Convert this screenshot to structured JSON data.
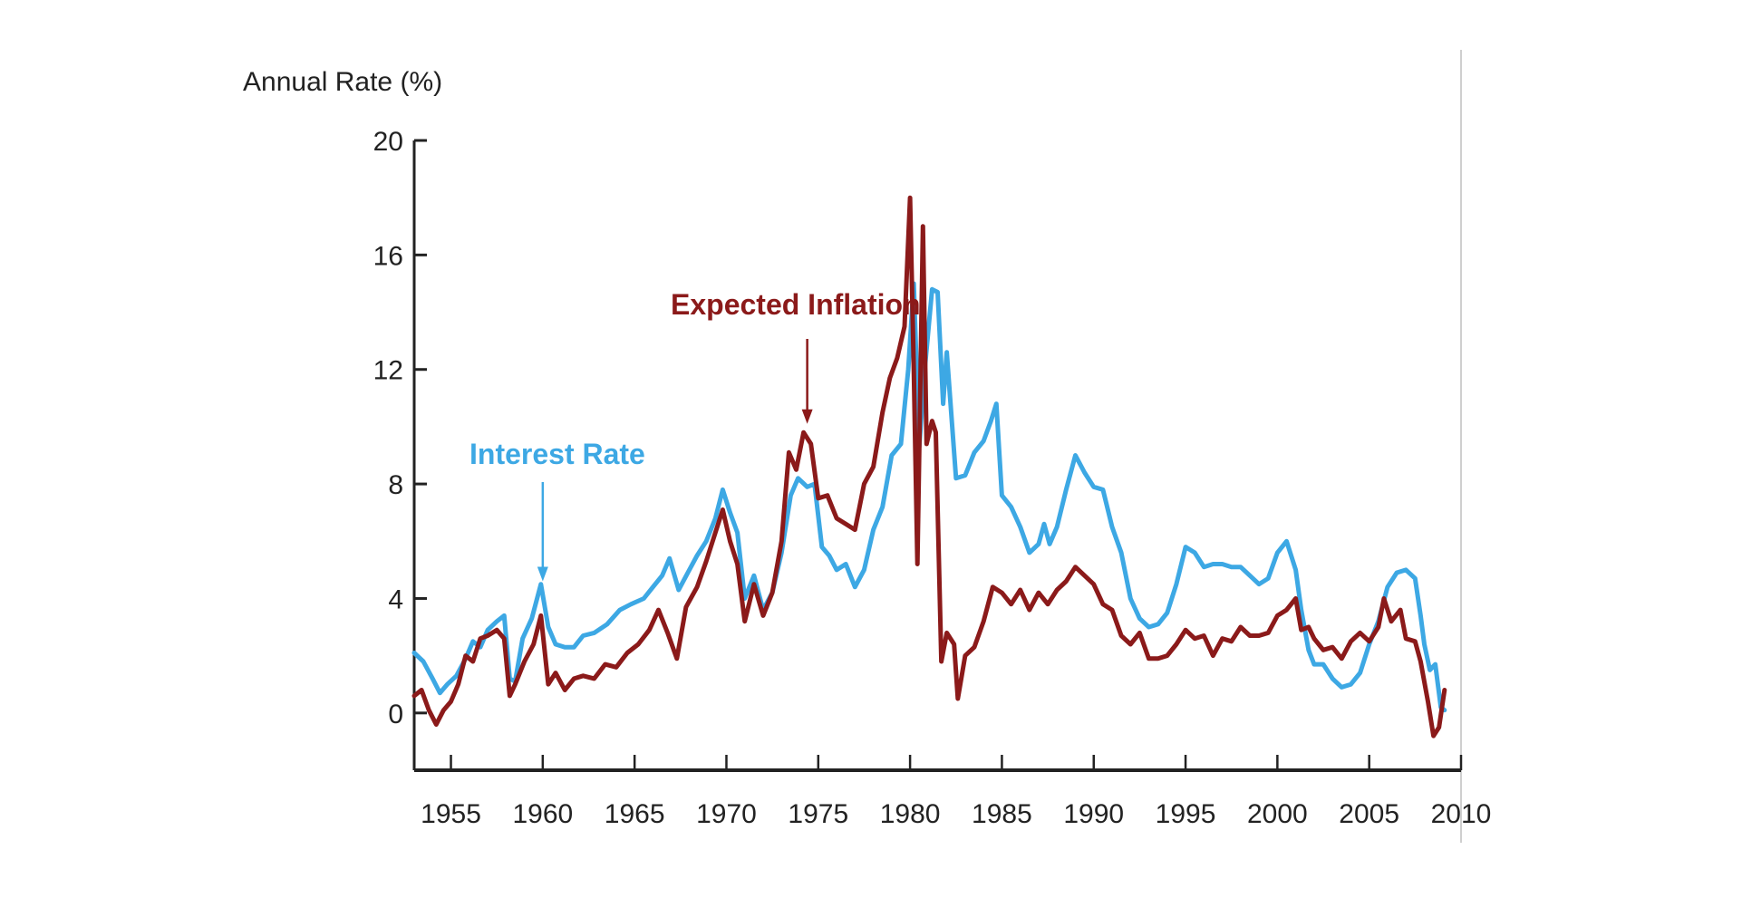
{
  "chart_data": {
    "type": "line",
    "title": "",
    "ylabel": "Annual Rate (%)",
    "xlabel": "",
    "xlim": [
      1953,
      2010
    ],
    "ylim": [
      -2,
      20
    ],
    "x_ticks": [
      1955,
      1960,
      1965,
      1970,
      1975,
      1980,
      1985,
      1990,
      1995,
      2000,
      2005,
      2010
    ],
    "y_ticks": [
      0,
      4,
      8,
      12,
      16,
      20
    ],
    "x_tick_labels": [
      "1955",
      "1960",
      "1965",
      "1970",
      "1975",
      "1980",
      "1985",
      "1990",
      "1995",
      "2000",
      "2005",
      "2010"
    ],
    "y_tick_labels": [
      "0",
      "4",
      "8",
      "12",
      "16",
      "20"
    ],
    "grid": false,
    "legend": "none",
    "annotations": [
      {
        "text": "Interest Rate",
        "points_to": [
          1960,
          4.6
        ],
        "color": "#3da8e4"
      },
      {
        "text": "Expected Inflation",
        "points_to": [
          1974.4,
          10.1
        ],
        "color": "#8b1a1a"
      }
    ],
    "series": [
      {
        "name": "Interest Rate",
        "color": "#3da8e4",
        "points": [
          [
            1953.0,
            2.1
          ],
          [
            1953.5,
            1.8
          ],
          [
            1954.0,
            1.2
          ],
          [
            1954.4,
            0.7
          ],
          [
            1954.8,
            1.0
          ],
          [
            1955.3,
            1.3
          ],
          [
            1955.8,
            1.9
          ],
          [
            1956.2,
            2.5
          ],
          [
            1956.6,
            2.3
          ],
          [
            1957.0,
            2.9
          ],
          [
            1957.5,
            3.2
          ],
          [
            1957.9,
            3.4
          ],
          [
            1958.2,
            1.2
          ],
          [
            1958.5,
            1.1
          ],
          [
            1958.9,
            2.6
          ],
          [
            1959.4,
            3.3
          ],
          [
            1959.9,
            4.5
          ],
          [
            1960.3,
            3.0
          ],
          [
            1960.7,
            2.4
          ],
          [
            1961.2,
            2.3
          ],
          [
            1961.7,
            2.3
          ],
          [
            1962.2,
            2.7
          ],
          [
            1962.8,
            2.8
          ],
          [
            1963.5,
            3.1
          ],
          [
            1964.2,
            3.6
          ],
          [
            1964.8,
            3.8
          ],
          [
            1965.5,
            4.0
          ],
          [
            1966.0,
            4.4
          ],
          [
            1966.5,
            4.8
          ],
          [
            1966.9,
            5.4
          ],
          [
            1967.4,
            4.3
          ],
          [
            1967.9,
            4.9
          ],
          [
            1968.4,
            5.5
          ],
          [
            1968.9,
            6.0
          ],
          [
            1969.4,
            6.8
          ],
          [
            1969.8,
            7.8
          ],
          [
            1970.2,
            7.0
          ],
          [
            1970.6,
            6.3
          ],
          [
            1971.0,
            4.0
          ],
          [
            1971.5,
            4.8
          ],
          [
            1972.0,
            3.6
          ],
          [
            1972.5,
            4.2
          ],
          [
            1973.0,
            5.6
          ],
          [
            1973.5,
            7.6
          ],
          [
            1973.9,
            8.2
          ],
          [
            1974.4,
            7.9
          ],
          [
            1974.8,
            8.0
          ],
          [
            1975.2,
            5.8
          ],
          [
            1975.6,
            5.5
          ],
          [
            1976.0,
            5.0
          ],
          [
            1976.5,
            5.2
          ],
          [
            1977.0,
            4.4
          ],
          [
            1977.5,
            5.0
          ],
          [
            1978.0,
            6.4
          ],
          [
            1978.5,
            7.2
          ],
          [
            1979.0,
            9.0
          ],
          [
            1979.5,
            9.4
          ],
          [
            1979.9,
            12.0
          ],
          [
            1980.2,
            15.0
          ],
          [
            1980.5,
            9.3
          ],
          [
            1980.8,
            12.0
          ],
          [
            1981.2,
            14.8
          ],
          [
            1981.5,
            14.7
          ],
          [
            1981.8,
            10.8
          ],
          [
            1982.0,
            12.6
          ],
          [
            1982.5,
            8.2
          ],
          [
            1983.0,
            8.3
          ],
          [
            1983.5,
            9.1
          ],
          [
            1984.0,
            9.5
          ],
          [
            1984.4,
            10.2
          ],
          [
            1984.7,
            10.8
          ],
          [
            1985.0,
            7.6
          ],
          [
            1985.5,
            7.2
          ],
          [
            1986.0,
            6.5
          ],
          [
            1986.5,
            5.6
          ],
          [
            1987.0,
            5.9
          ],
          [
            1987.3,
            6.6
          ],
          [
            1987.6,
            5.9
          ],
          [
            1988.0,
            6.5
          ],
          [
            1988.5,
            7.8
          ],
          [
            1989.0,
            9.0
          ],
          [
            1989.5,
            8.4
          ],
          [
            1990.0,
            7.9
          ],
          [
            1990.5,
            7.8
          ],
          [
            1991.0,
            6.5
          ],
          [
            1991.5,
            5.6
          ],
          [
            1992.0,
            4.0
          ],
          [
            1992.5,
            3.3
          ],
          [
            1993.0,
            3.0
          ],
          [
            1993.5,
            3.1
          ],
          [
            1994.0,
            3.5
          ],
          [
            1994.5,
            4.5
          ],
          [
            1995.0,
            5.8
          ],
          [
            1995.5,
            5.6
          ],
          [
            1996.0,
            5.1
          ],
          [
            1996.5,
            5.2
          ],
          [
            1997.0,
            5.2
          ],
          [
            1997.5,
            5.1
          ],
          [
            1998.0,
            5.1
          ],
          [
            1998.5,
            4.8
          ],
          [
            1999.0,
            4.5
          ],
          [
            1999.5,
            4.7
          ],
          [
            2000.0,
            5.6
          ],
          [
            2000.5,
            6.0
          ],
          [
            2001.0,
            5.0
          ],
          [
            2001.3,
            3.6
          ],
          [
            2001.7,
            2.2
          ],
          [
            2002.0,
            1.7
          ],
          [
            2002.5,
            1.7
          ],
          [
            2003.0,
            1.2
          ],
          [
            2003.5,
            0.9
          ],
          [
            2004.0,
            1.0
          ],
          [
            2004.5,
            1.4
          ],
          [
            2005.0,
            2.4
          ],
          [
            2005.5,
            3.2
          ],
          [
            2006.0,
            4.4
          ],
          [
            2006.5,
            4.9
          ],
          [
            2007.0,
            5.0
          ],
          [
            2007.5,
            4.7
          ],
          [
            2007.8,
            3.4
          ],
          [
            2008.0,
            2.4
          ],
          [
            2008.3,
            1.5
          ],
          [
            2008.6,
            1.7
          ],
          [
            2008.9,
            0.2
          ],
          [
            2009.1,
            0.1
          ]
        ]
      },
      {
        "name": "Expected Inflation",
        "color": "#8b1a1a",
        "points": [
          [
            1953.0,
            0.6
          ],
          [
            1953.4,
            0.8
          ],
          [
            1953.8,
            0.1
          ],
          [
            1954.2,
            -0.4
          ],
          [
            1954.6,
            0.1
          ],
          [
            1955.0,
            0.4
          ],
          [
            1955.4,
            1.0
          ],
          [
            1955.8,
            2.0
          ],
          [
            1956.2,
            1.8
          ],
          [
            1956.6,
            2.6
          ],
          [
            1957.0,
            2.7
          ],
          [
            1957.5,
            2.9
          ],
          [
            1957.9,
            2.6
          ],
          [
            1958.2,
            0.6
          ],
          [
            1958.5,
            1.0
          ],
          [
            1959.0,
            1.8
          ],
          [
            1959.5,
            2.4
          ],
          [
            1959.9,
            3.4
          ],
          [
            1960.3,
            1.0
          ],
          [
            1960.7,
            1.4
          ],
          [
            1961.2,
            0.8
          ],
          [
            1961.7,
            1.2
          ],
          [
            1962.2,
            1.3
          ],
          [
            1962.8,
            1.2
          ],
          [
            1963.4,
            1.7
          ],
          [
            1964.0,
            1.6
          ],
          [
            1964.6,
            2.1
          ],
          [
            1965.2,
            2.4
          ],
          [
            1965.8,
            2.9
          ],
          [
            1966.3,
            3.6
          ],
          [
            1966.8,
            2.8
          ],
          [
            1967.3,
            1.9
          ],
          [
            1967.8,
            3.7
          ],
          [
            1968.4,
            4.4
          ],
          [
            1968.9,
            5.3
          ],
          [
            1969.4,
            6.3
          ],
          [
            1969.8,
            7.1
          ],
          [
            1970.2,
            6.0
          ],
          [
            1970.6,
            5.2
          ],
          [
            1971.0,
            3.2
          ],
          [
            1971.5,
            4.5
          ],
          [
            1972.0,
            3.4
          ],
          [
            1972.5,
            4.2
          ],
          [
            1973.0,
            6.0
          ],
          [
            1973.4,
            9.1
          ],
          [
            1973.8,
            8.5
          ],
          [
            1974.2,
            9.8
          ],
          [
            1974.6,
            9.4
          ],
          [
            1975.0,
            7.5
          ],
          [
            1975.5,
            7.6
          ],
          [
            1976.0,
            6.8
          ],
          [
            1976.5,
            6.6
          ],
          [
            1977.0,
            6.4
          ],
          [
            1977.5,
            8.0
          ],
          [
            1978.0,
            8.6
          ],
          [
            1978.5,
            10.5
          ],
          [
            1978.9,
            11.7
          ],
          [
            1979.3,
            12.4
          ],
          [
            1979.7,
            13.5
          ],
          [
            1980.0,
            18.0
          ],
          [
            1980.2,
            12.0
          ],
          [
            1980.4,
            5.2
          ],
          [
            1980.7,
            17.0
          ],
          [
            1980.9,
            9.4
          ],
          [
            1981.2,
            10.2
          ],
          [
            1981.4,
            9.8
          ],
          [
            1981.7,
            1.8
          ],
          [
            1982.0,
            2.8
          ],
          [
            1982.4,
            2.4
          ],
          [
            1982.6,
            0.5
          ],
          [
            1983.0,
            2.0
          ],
          [
            1983.5,
            2.3
          ],
          [
            1984.0,
            3.2
          ],
          [
            1984.5,
            4.4
          ],
          [
            1985.0,
            4.2
          ],
          [
            1985.5,
            3.8
          ],
          [
            1986.0,
            4.3
          ],
          [
            1986.5,
            3.6
          ],
          [
            1987.0,
            4.2
          ],
          [
            1987.5,
            3.8
          ],
          [
            1988.0,
            4.3
          ],
          [
            1988.5,
            4.6
          ],
          [
            1989.0,
            5.1
          ],
          [
            1989.5,
            4.8
          ],
          [
            1990.0,
            4.5
          ],
          [
            1990.5,
            3.8
          ],
          [
            1991.0,
            3.6
          ],
          [
            1991.5,
            2.7
          ],
          [
            1992.0,
            2.4
          ],
          [
            1992.5,
            2.8
          ],
          [
            1993.0,
            1.9
          ],
          [
            1993.5,
            1.9
          ],
          [
            1994.0,
            2.0
          ],
          [
            1994.5,
            2.4
          ],
          [
            1995.0,
            2.9
          ],
          [
            1995.5,
            2.6
          ],
          [
            1996.0,
            2.7
          ],
          [
            1996.5,
            2.0
          ],
          [
            1997.0,
            2.6
          ],
          [
            1997.5,
            2.5
          ],
          [
            1998.0,
            3.0
          ],
          [
            1998.5,
            2.7
          ],
          [
            1999.0,
            2.7
          ],
          [
            1999.5,
            2.8
          ],
          [
            2000.0,
            3.4
          ],
          [
            2000.5,
            3.6
          ],
          [
            2001.0,
            4.0
          ],
          [
            2001.3,
            2.9
          ],
          [
            2001.7,
            3.0
          ],
          [
            2002.0,
            2.6
          ],
          [
            2002.5,
            2.2
          ],
          [
            2003.0,
            2.3
          ],
          [
            2003.5,
            1.9
          ],
          [
            2004.0,
            2.5
          ],
          [
            2004.5,
            2.8
          ],
          [
            2005.0,
            2.5
          ],
          [
            2005.5,
            3.0
          ],
          [
            2005.8,
            4.0
          ],
          [
            2006.2,
            3.2
          ],
          [
            2006.7,
            3.6
          ],
          [
            2007.0,
            2.6
          ],
          [
            2007.5,
            2.5
          ],
          [
            2007.8,
            1.8
          ],
          [
            2008.2,
            0.4
          ],
          [
            2008.5,
            -0.8
          ],
          [
            2008.8,
            -0.5
          ],
          [
            2009.1,
            0.8
          ]
        ]
      }
    ]
  }
}
